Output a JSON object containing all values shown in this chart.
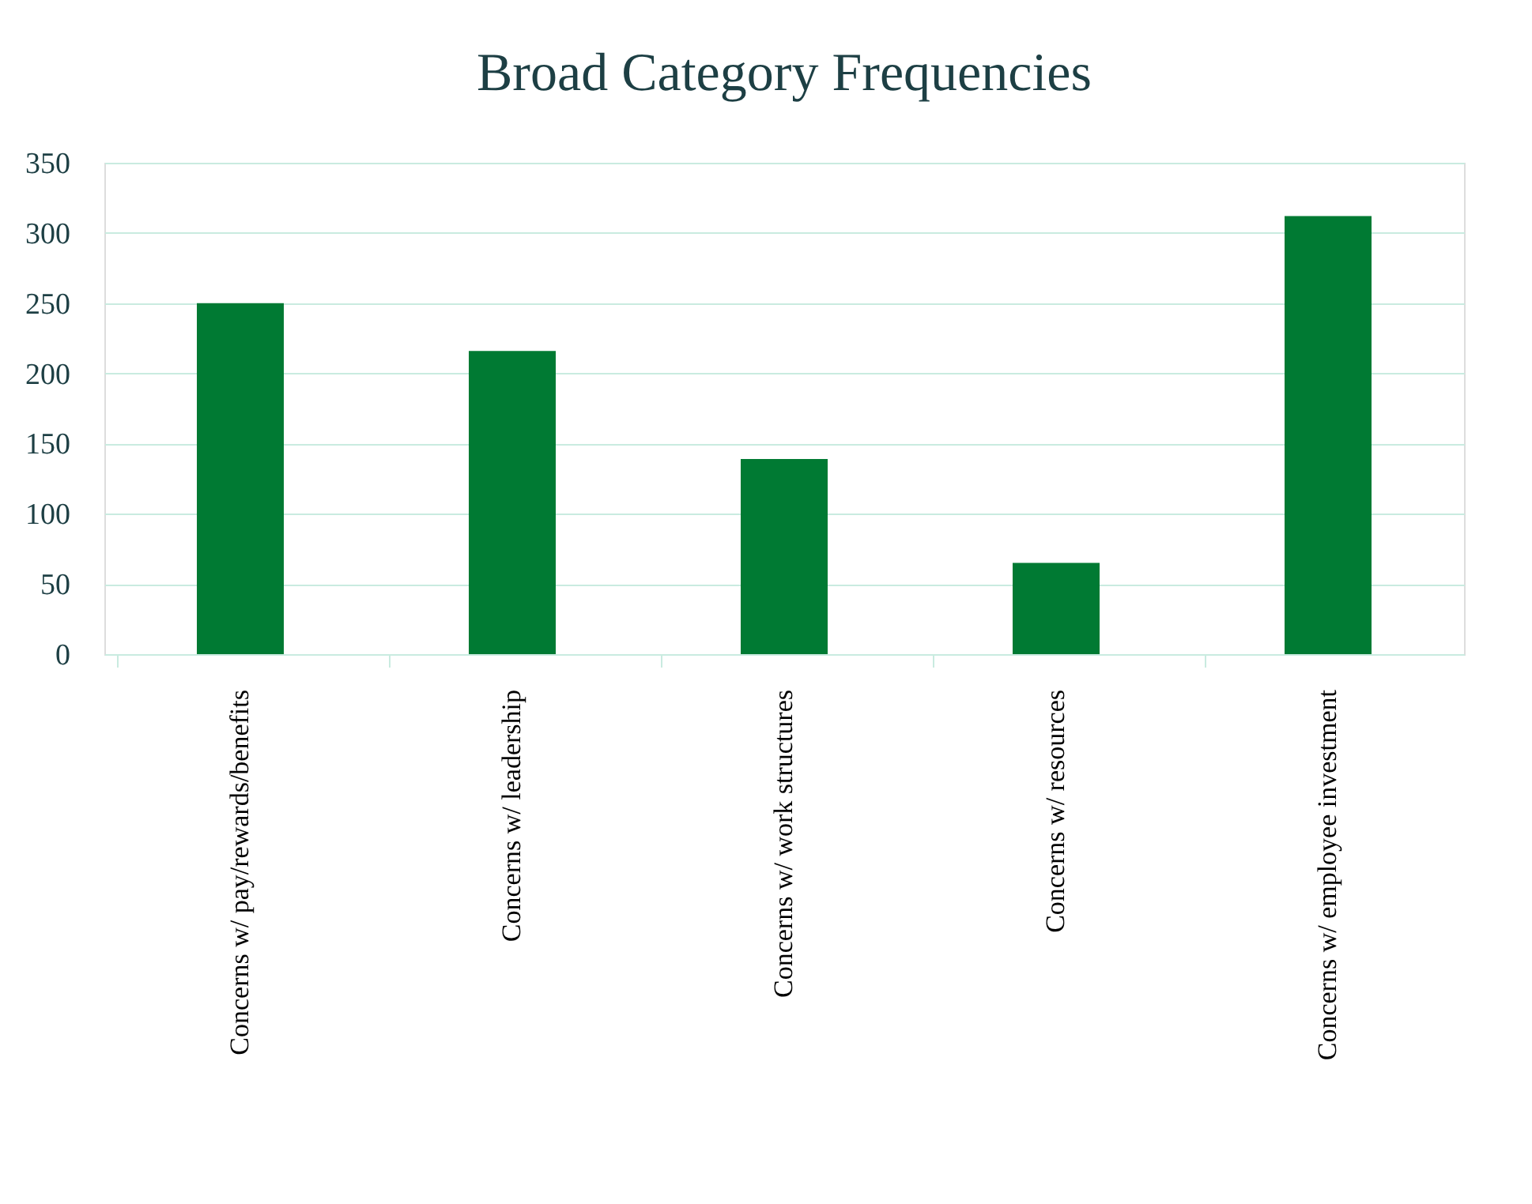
{
  "chart_data": {
    "type": "bar",
    "title": "Broad Category Frequencies",
    "categories": [
      "Concerns w/ pay/rewards/benefits",
      "Concerns w/ leadership",
      "Concerns w/ work structures",
      "Concerns w/ resources",
      "Concerns w/ employee investment"
    ],
    "values": [
      250,
      216,
      139,
      65,
      312
    ],
    "color": "#007a33",
    "ylim": [
      0,
      350
    ],
    "yticks": [
      0,
      50,
      100,
      150,
      200,
      250,
      300,
      350
    ],
    "grid": "y"
  }
}
